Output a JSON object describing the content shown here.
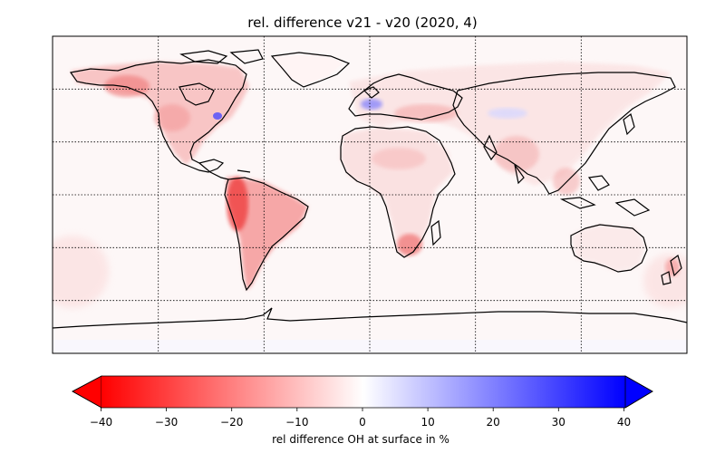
{
  "title": "rel. difference v21 - v20 (2020, 4)",
  "colorbar": {
    "label": "rel difference OH at surface in %",
    "ticks": [
      "−40",
      "−30",
      "−20",
      "−10",
      "0",
      "10",
      "20",
      "30",
      "40"
    ],
    "min": -40,
    "max": 40,
    "extend": "both",
    "colors": {
      "low": "#ff0000",
      "mid": "#ffffff",
      "high": "#0000ff"
    }
  },
  "map": {
    "projection": "PlateCarree",
    "gridlines": "dotted",
    "coastline_color": "#000000"
  }
}
